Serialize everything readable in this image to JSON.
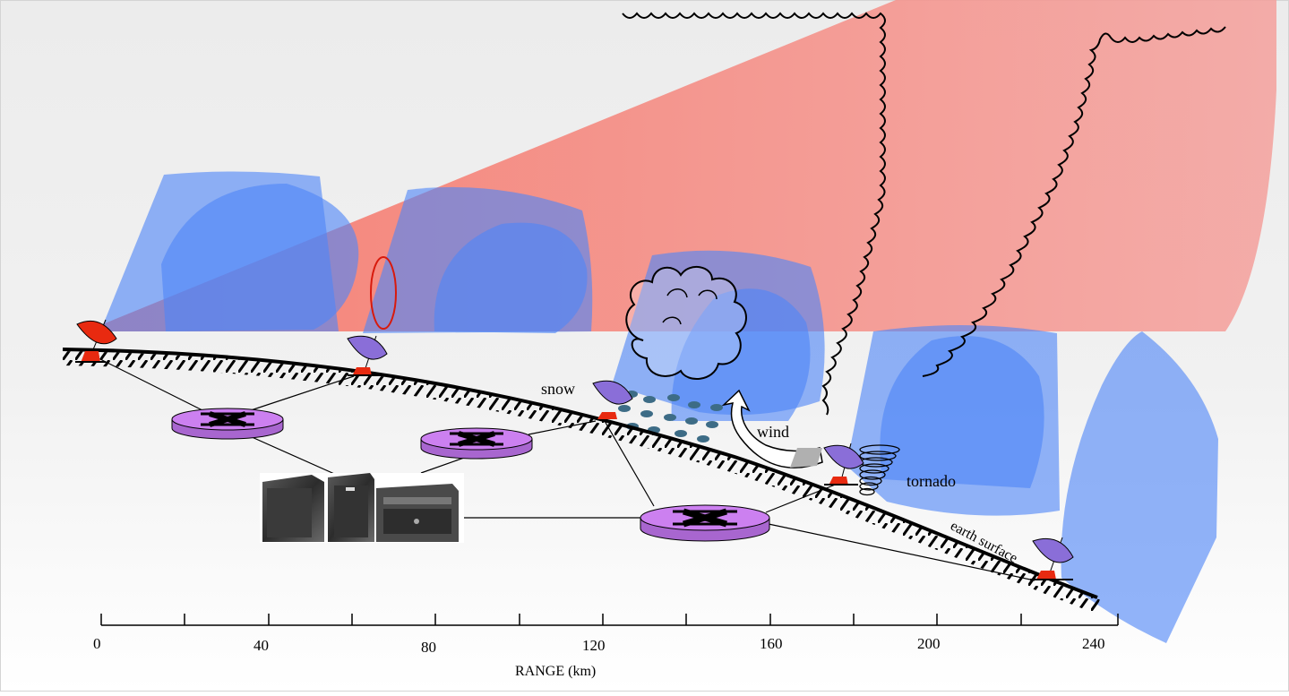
{
  "labels": {
    "snow": "snow",
    "wind": "wind",
    "tornado": "tornado",
    "earth_surface": "earth surface"
  },
  "axis": {
    "title": "RANGE (km)",
    "ticks": [
      "0",
      "40",
      "80",
      "120",
      "160",
      "200",
      "240"
    ]
  },
  "colors": {
    "background_top": "#ebebeb",
    "background_bottom": "#ffffff",
    "large_beam": "#f47a70",
    "small_beam": "#4f86f7",
    "router": "#cc80f0",
    "radar_dish_red": "#e82a10",
    "radar_dish_blue": "#8a6ed8",
    "snow_dots": "#3d6c86"
  }
}
